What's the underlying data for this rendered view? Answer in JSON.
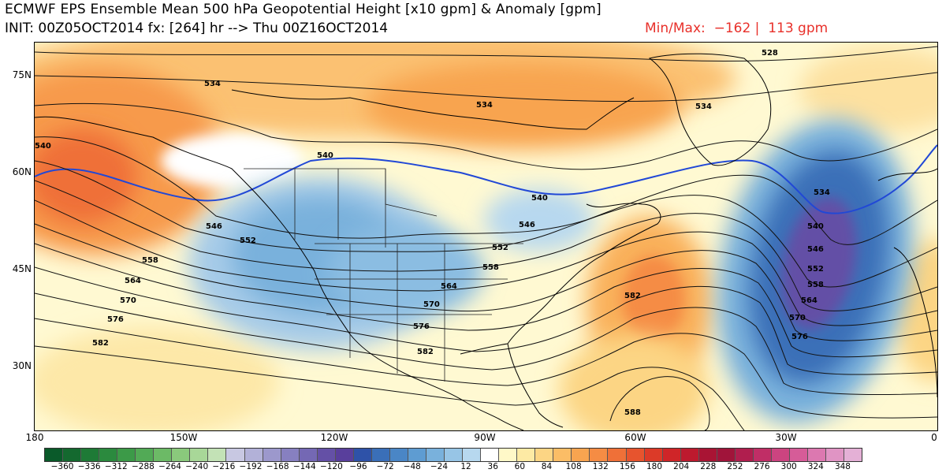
{
  "title": {
    "line1": "ECMWF EPS Ensemble Mean 500 hPa Geopotential Height [x10 gpm] & Anomaly [gpm]",
    "line2": "INIT: 00Z05OCT2014 fx: [264] hr --> Thu 00Z16OCT2014",
    "minmax": "Min/Max:  −162 |  113 gpm"
  },
  "map": {
    "lat_labels": [
      "75N",
      "60N",
      "45N",
      "30N"
    ],
    "lon_labels": [
      "180",
      "150W",
      "120W",
      "90W",
      "60W",
      "30W",
      "0"
    ],
    "contour_labels": [
      "528",
      "534",
      "534",
      "534",
      "534",
      "540",
      "540",
      "540",
      "540",
      "546",
      "546",
      "546",
      "552",
      "552",
      "552",
      "558",
      "558",
      "558",
      "564",
      "564",
      "564",
      "570",
      "570",
      "570",
      "576",
      "576",
      "576",
      "582",
      "582",
      "582",
      "588"
    ]
  },
  "colorbar": {
    "labels": [
      "−360",
      "−336",
      "−312",
      "−288",
      "−264",
      "−240",
      "−216",
      "−192",
      "−168",
      "−144",
      "−120",
      "−96",
      "−72",
      "−48",
      "−24",
      "12",
      "36",
      "60",
      "84",
      "108",
      "132",
      "156",
      "180",
      "204",
      "228",
      "252",
      "276",
      "300",
      "324",
      "348"
    ],
    "colors": [
      "#0a5a2a",
      "#14692f",
      "#1e7a36",
      "#2b8a3e",
      "#3c9a48",
      "#52aa56",
      "#6cba66",
      "#8ac97c",
      "#a8d798",
      "#c3e2b6",
      "#c8c8e2",
      "#b2b1d8",
      "#9c98cc",
      "#8780c0",
      "#7468b4",
      "#6450a6",
      "#593f9c",
      "#2e52a8",
      "#3a6fb8",
      "#4a86c6",
      "#5e9cd2",
      "#79b1dc",
      "#97c5e6",
      "#b7d8ef",
      "#ffffff",
      "#fff8c8",
      "#fdeaa4",
      "#fcd584",
      "#fbbd66",
      "#f8a450",
      "#f58c44",
      "#ef7038",
      "#e7542e",
      "#dc3a28",
      "#cf2528",
      "#bd1a2e",
      "#a91434",
      "#a0143a",
      "#b01e4e",
      "#c02e66",
      "#cc4480",
      "#d65c98",
      "#dc78b0",
      "#e094c4",
      "#e4b0d6"
    ]
  }
}
